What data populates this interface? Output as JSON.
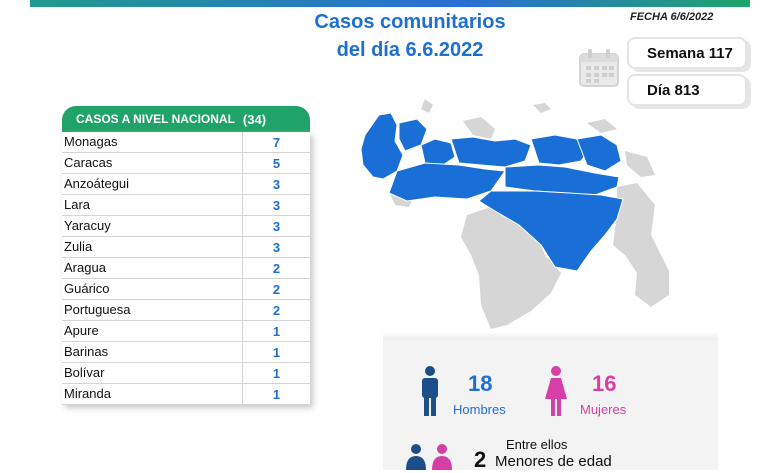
{
  "header": {
    "title_line1": "Casos comunitarios",
    "title_line2": "del día 6.6.2022",
    "fecha": "FECHA 6/6/2022",
    "semana": "Semana 117",
    "dia": "Día 813"
  },
  "table": {
    "title": "CASOS A NIVEL NACIONAL",
    "total": "(34)",
    "rows": [
      {
        "state": "Monagas",
        "value": "7"
      },
      {
        "state": "Caracas",
        "value": "5"
      },
      {
        "state": "Anzoátegui",
        "value": "3"
      },
      {
        "state": "Lara",
        "value": "3"
      },
      {
        "state": "Yaracuy",
        "value": "3"
      },
      {
        "state": "Zulia",
        "value": "3"
      },
      {
        "state": "Aragua",
        "value": "2"
      },
      {
        "state": "Guárico",
        "value": "2"
      },
      {
        "state": "Portuguesa",
        "value": "2"
      },
      {
        "state": "Apure",
        "value": "1"
      },
      {
        "state": "Barinas",
        "value": "1"
      },
      {
        "state": "Bolívar",
        "value": "1"
      },
      {
        "state": "Miranda",
        "value": "1"
      }
    ]
  },
  "stats": {
    "hombres_count": "18",
    "hombres_label": "Hombres",
    "mujeres_count": "16",
    "mujeres_label": "Mujeres",
    "entre_ellos": "Entre ellos",
    "menores_count": "2",
    "menores_label": "Menores de edad"
  },
  "colors": {
    "brand_blue": "#1d6fd1",
    "header_green": "#1fa368",
    "map_blue": "#1a6fd6",
    "map_gray": "#d6d6d6",
    "male": "#1c4f8a",
    "female": "#d63fa6"
  }
}
